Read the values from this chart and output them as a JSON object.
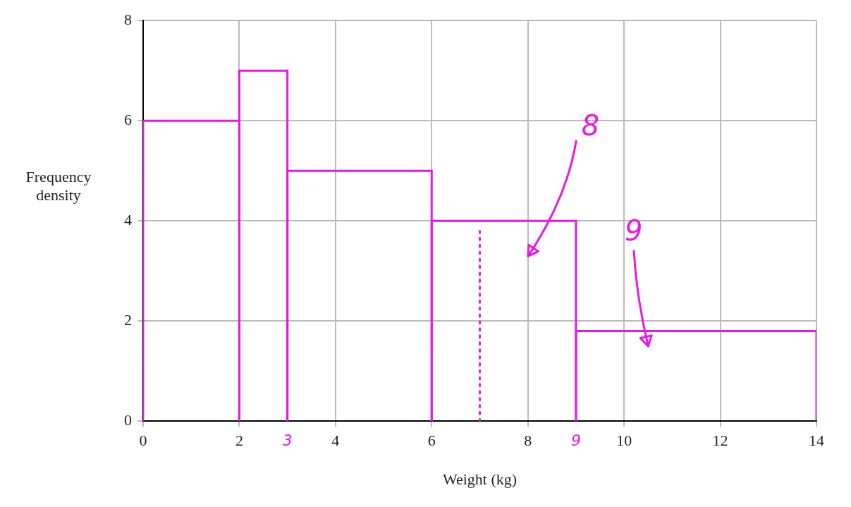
{
  "chart_data": {
    "type": "histogram",
    "xlabel": "Weight (kg)",
    "ylabel": "Frequency density",
    "bins": [
      0,
      2,
      3,
      6,
      9,
      14
    ],
    "values": [
      6,
      7,
      5,
      4,
      1.8
    ],
    "color": "#e619e6",
    "series": [
      {
        "type": "line",
        "x": [
          7,
          7
        ],
        "values": [
          0,
          3.8
        ],
        "color": "#e619e6",
        "line_style": "dotted"
      }
    ],
    "xlim": [
      0,
      14
    ],
    "ylim": [
      0,
      8
    ],
    "xticks": [
      0,
      2,
      3,
      4,
      6,
      8,
      9,
      10,
      12,
      14
    ],
    "yticks": [
      0,
      2,
      4,
      6,
      8
    ],
    "grid": true,
    "annotations": [
      "8",
      "9"
    ]
  }
}
